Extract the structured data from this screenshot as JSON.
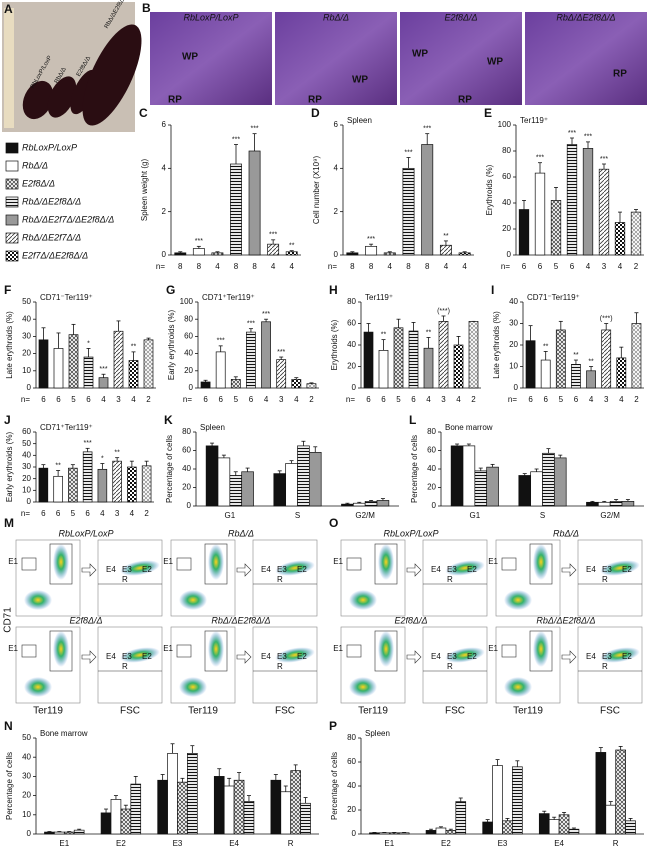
{
  "legend": [
    {
      "name": "RbLoxP/LoxP",
      "style": "black"
    },
    {
      "name": "RbΔ/Δ",
      "style": "white"
    },
    {
      "name": "E2f8Δ/Δ",
      "style": "cross"
    },
    {
      "name": "RbΔ/ΔE2f8Δ/Δ",
      "style": "hstripe"
    },
    {
      "name": "RbΔ/ΔE2f7Δ/ΔE2f8Δ/Δ",
      "style": "gray"
    },
    {
      "name": "RbΔ/ΔE2f7Δ/Δ",
      "style": "diag"
    },
    {
      "name": "E2f7Δ/ΔE2f8Δ/Δ",
      "style": "check"
    }
  ],
  "images": {
    "A": {
      "panel": "A",
      "labels": [
        "RbLoxP/LoxP",
        "RbΔ/Δ",
        "E2f8Δ/Δ",
        "RbΔ/ΔE2f8Δ/Δ"
      ]
    },
    "B": {
      "panel": "B",
      "titles": [
        "RbLoxP/LoxP",
        "RbΔ/Δ",
        "E2f8Δ/Δ",
        "RbΔ/ΔE2f8Δ/Δ"
      ],
      "regions": [
        [
          "WP",
          "RP"
        ],
        [
          "RP",
          "WP"
        ],
        [
          "WP",
          "WP",
          "RP"
        ],
        [
          "RP"
        ]
      ]
    },
    "M": {
      "panel": "M",
      "titles": [
        "RbLoxP/LoxP",
        "RbΔ/Δ",
        "E2f8Δ/Δ",
        "RbΔ/ΔE2f8Δ/Δ"
      ]
    },
    "O": {
      "panel": "O",
      "titles": [
        "RbLoxP/LoxP",
        "RbΔ/Δ",
        "E2f8Δ/Δ",
        "RbΔ/ΔE2f8Δ/Δ"
      ]
    },
    "flow": {
      "ylabel": "CD71",
      "xlabel_left": "Ter119",
      "xlabel_right": "FSC",
      "gate_left": "E1",
      "gates_right": [
        "E4",
        "E3",
        "E2",
        "R"
      ]
    }
  },
  "n_label": "n=",
  "chart_data": [
    {
      "type": "bar",
      "panel": "C",
      "ylabel": "Spleen weight (g)",
      "categories": [
        "8",
        "8",
        "4",
        "8",
        "8",
        "4",
        "4"
      ],
      "values": [
        0.1,
        0.3,
        0.1,
        4.2,
        4.8,
        0.5,
        0.15
      ],
      "errors": [
        0.05,
        0.1,
        0.05,
        0.9,
        0.8,
        0.2,
        0.05
      ],
      "styles": [
        "black",
        "white",
        "cross",
        "hstripe",
        "gray",
        "diag",
        "check"
      ],
      "stars": [
        null,
        "***",
        null,
        "***",
        "***",
        "***",
        "**"
      ],
      "ylim": [
        0,
        6
      ],
      "yticks": [
        0,
        2,
        4,
        6
      ]
    },
    {
      "type": "bar",
      "panel": "D",
      "ylabel": "Cell number (X10⁹)",
      "subtitle": "Spleen",
      "categories": [
        "8",
        "8",
        "4",
        "8",
        "8",
        "4",
        "4"
      ],
      "values": [
        0.1,
        0.4,
        0.1,
        4.0,
        5.1,
        0.45,
        0.1
      ],
      "errors": [
        0.05,
        0.1,
        0.05,
        0.5,
        0.5,
        0.2,
        0.05
      ],
      "styles": [
        "black",
        "white",
        "cross",
        "hstripe",
        "gray",
        "diag",
        "check"
      ],
      "stars": [
        null,
        "***",
        null,
        "***",
        "***",
        "**",
        null
      ],
      "ylim": [
        0,
        6
      ],
      "yticks": [
        0,
        2,
        4,
        6
      ]
    },
    {
      "type": "bar",
      "panel": "E",
      "ylabel": "Erythroids (%)",
      "subtitle": "Ter119⁺",
      "categories": [
        "6",
        "6",
        "5",
        "6",
        "4",
        "3",
        "4",
        "2"
      ],
      "values": [
        35,
        63,
        42,
        85,
        82,
        66,
        25,
        33
      ],
      "errors": [
        7,
        8,
        10,
        5,
        5,
        4,
        8,
        2
      ],
      "styles": [
        "black",
        "white",
        "cross",
        "hstripe",
        "gray",
        "diag",
        "check",
        "diagcross"
      ],
      "stars": [
        null,
        "***",
        null,
        "***",
        "***",
        "***",
        null,
        null
      ],
      "ylim": [
        0,
        100
      ],
      "yticks": [
        0,
        20,
        40,
        60,
        80,
        100
      ]
    },
    {
      "type": "bar",
      "panel": "F",
      "ylabel": "Late erythroids (%)",
      "subtitle": "CD71⁻Ter119⁺",
      "categories": [
        "6",
        "6",
        "5",
        "6",
        "4",
        "3",
        "4",
        "2"
      ],
      "values": [
        28,
        23,
        31,
        18,
        6,
        33,
        16,
        28
      ],
      "errors": [
        7,
        9,
        6,
        5,
        2,
        6,
        5,
        1
      ],
      "styles": [
        "black",
        "white",
        "cross",
        "hstripe",
        "gray",
        "diag",
        "check",
        "diagcross"
      ],
      "stars": [
        null,
        null,
        null,
        "*",
        "***",
        null,
        "**",
        null
      ],
      "ylim": [
        0,
        50
      ],
      "yticks": [
        0,
        10,
        20,
        30,
        40,
        50
      ]
    },
    {
      "type": "bar",
      "panel": "G",
      "ylabel": "Early erythroids (%)",
      "subtitle": "CD71⁺Ter119⁺",
      "categories": [
        "6",
        "6",
        "5",
        "6",
        "4",
        "3",
        "4",
        "2"
      ],
      "values": [
        7,
        42,
        10,
        65,
        77,
        33,
        10,
        5
      ],
      "errors": [
        2,
        7,
        3,
        4,
        3,
        3,
        2,
        1
      ],
      "styles": [
        "black",
        "white",
        "cross",
        "hstripe",
        "gray",
        "diag",
        "check",
        "diagcross"
      ],
      "stars": [
        null,
        "***",
        null,
        "***",
        "***",
        "***",
        null,
        null
      ],
      "ylim": [
        0,
        100
      ],
      "yticks": [
        0,
        20,
        40,
        60,
        80,
        100
      ]
    },
    {
      "type": "bar",
      "panel": "H",
      "ylabel": "Erythroids (%)",
      "subtitle": "Ter119⁺",
      "categories": [
        "6",
        "6",
        "5",
        "6",
        "4",
        "3",
        "4",
        "2"
      ],
      "values": [
        52,
        35,
        56,
        53,
        37,
        62,
        40,
        62
      ],
      "errors": [
        8,
        10,
        8,
        8,
        10,
        5,
        8,
        0
      ],
      "styles": [
        "black",
        "white",
        "cross",
        "hstripe",
        "gray",
        "diag",
        "check",
        "diagcross"
      ],
      "stars": [
        null,
        "**",
        null,
        null,
        "**",
        "(***)",
        null,
        null
      ],
      "ylim": [
        0,
        80
      ],
      "yticks": [
        0,
        20,
        40,
        60,
        80
      ]
    },
    {
      "type": "bar",
      "panel": "I",
      "ylabel": "Late erythroids (%)",
      "subtitle": "CD71⁻Ter119⁺",
      "categories": [
        "6",
        "6",
        "5",
        "6",
        "4",
        "3",
        "4",
        "2"
      ],
      "values": [
        22,
        13,
        27,
        11,
        8,
        27,
        14,
        30
      ],
      "errors": [
        7,
        4,
        4,
        2,
        2,
        3,
        5,
        5
      ],
      "styles": [
        "black",
        "white",
        "cross",
        "hstripe",
        "gray",
        "diag",
        "check",
        "diagcross"
      ],
      "stars": [
        null,
        "**",
        null,
        "**",
        "**",
        "(***)",
        null,
        null
      ],
      "ylim": [
        0,
        40
      ],
      "yticks": [
        0,
        10,
        20,
        30,
        40
      ]
    },
    {
      "type": "bar",
      "panel": "J",
      "ylabel": "Early erythroids (%)",
      "subtitle": "CD71⁺Ter119⁺",
      "categories": [
        "6",
        "6",
        "5",
        "6",
        "4",
        "3",
        "4",
        "2"
      ],
      "values": [
        29,
        22,
        29,
        43,
        28,
        35,
        30,
        31
      ],
      "errors": [
        3,
        5,
        3,
        3,
        5,
        3,
        5,
        4
      ],
      "styles": [
        "black",
        "white",
        "cross",
        "hstripe",
        "gray",
        "diag",
        "check",
        "diagcross"
      ],
      "stars": [
        null,
        "**",
        null,
        "***",
        "*",
        "**",
        null,
        null
      ],
      "ylim": [
        0,
        60
      ],
      "yticks": [
        0,
        10,
        20,
        30,
        40,
        50,
        60
      ]
    },
    {
      "type": "bar",
      "panel": "K",
      "ylabel": "Percentage of cells",
      "subtitle": "Spleen",
      "categories": [
        "G1",
        "S",
        "G2/M"
      ],
      "series": [
        {
          "style": "black",
          "values": [
            65,
            35,
            2
          ],
          "errors": [
            3,
            3,
            1
          ]
        },
        {
          "style": "white",
          "values": [
            52,
            46,
            3
          ],
          "errors": [
            3,
            3,
            1
          ]
        },
        {
          "style": "hstripe",
          "values": [
            33,
            65,
            5
          ],
          "errors": [
            4,
            5,
            1
          ]
        },
        {
          "style": "gray",
          "values": [
            37,
            58,
            6
          ],
          "errors": [
            4,
            6,
            2
          ]
        }
      ],
      "ylim": [
        0,
        80
      ],
      "yticks": [
        0,
        20,
        40,
        60,
        80
      ]
    },
    {
      "type": "bar",
      "panel": "L",
      "ylabel": "Percentage of cells",
      "subtitle": "Bone marrow",
      "categories": [
        "G1",
        "S",
        "G2/M"
      ],
      "series": [
        {
          "style": "black",
          "values": [
            65,
            33,
            4
          ],
          "errors": [
            2,
            2,
            1
          ]
        },
        {
          "style": "white",
          "values": [
            65,
            37,
            4
          ],
          "errors": [
            2,
            3,
            1
          ]
        },
        {
          "style": "hstripe",
          "values": [
            38,
            57,
            5
          ],
          "errors": [
            3,
            5,
            2
          ]
        },
        {
          "style": "gray",
          "values": [
            42,
            52,
            5
          ],
          "errors": [
            3,
            3,
            2
          ]
        }
      ],
      "ylim": [
        0,
        80
      ],
      "yticks": [
        0,
        20,
        40,
        60,
        80
      ]
    },
    {
      "type": "bar",
      "panel": "N",
      "ylabel": "Percentage of cells",
      "subtitle": "Bone marrow",
      "categories": [
        "E1",
        "E2",
        "E3",
        "E4",
        "R"
      ],
      "series": [
        {
          "style": "black",
          "values": [
            1,
            11,
            28,
            30,
            28
          ],
          "errors": [
            0.3,
            2,
            3,
            4,
            3
          ]
        },
        {
          "style": "white",
          "values": [
            1,
            18,
            42,
            25,
            22
          ],
          "errors": [
            0.3,
            2,
            5,
            4,
            3
          ]
        },
        {
          "style": "cross",
          "values": [
            1,
            13,
            27,
            28,
            33
          ],
          "errors": [
            0.3,
            2,
            2,
            4,
            3
          ]
        },
        {
          "style": "hstripe",
          "values": [
            2,
            26,
            42,
            17,
            16
          ],
          "errors": [
            0.5,
            4,
            4,
            3,
            3
          ]
        }
      ],
      "ylim": [
        0,
        50
      ],
      "yticks": [
        0,
        10,
        20,
        30,
        40,
        50
      ]
    },
    {
      "type": "bar",
      "panel": "P",
      "ylabel": "Percentage of cells",
      "subtitle": "Spleen",
      "categories": [
        "E1",
        "E2",
        "E3",
        "E4",
        "R"
      ],
      "series": [
        {
          "style": "black",
          "values": [
            1,
            3,
            10,
            17,
            68
          ],
          "errors": [
            0.3,
            1,
            2,
            2,
            4
          ]
        },
        {
          "style": "white",
          "values": [
            1,
            5,
            57,
            12,
            24
          ],
          "errors": [
            0.3,
            1,
            5,
            2,
            3
          ]
        },
        {
          "style": "cross",
          "values": [
            1,
            3,
            11,
            16,
            70
          ],
          "errors": [
            0.3,
            1,
            2,
            2,
            3
          ]
        },
        {
          "style": "hstripe",
          "values": [
            1,
            27,
            56,
            4,
            11
          ],
          "errors": [
            0.3,
            3,
            5,
            1,
            2
          ]
        }
      ],
      "ylim": [
        0,
        80
      ],
      "yticks": [
        0,
        20,
        40,
        60,
        80
      ]
    }
  ]
}
